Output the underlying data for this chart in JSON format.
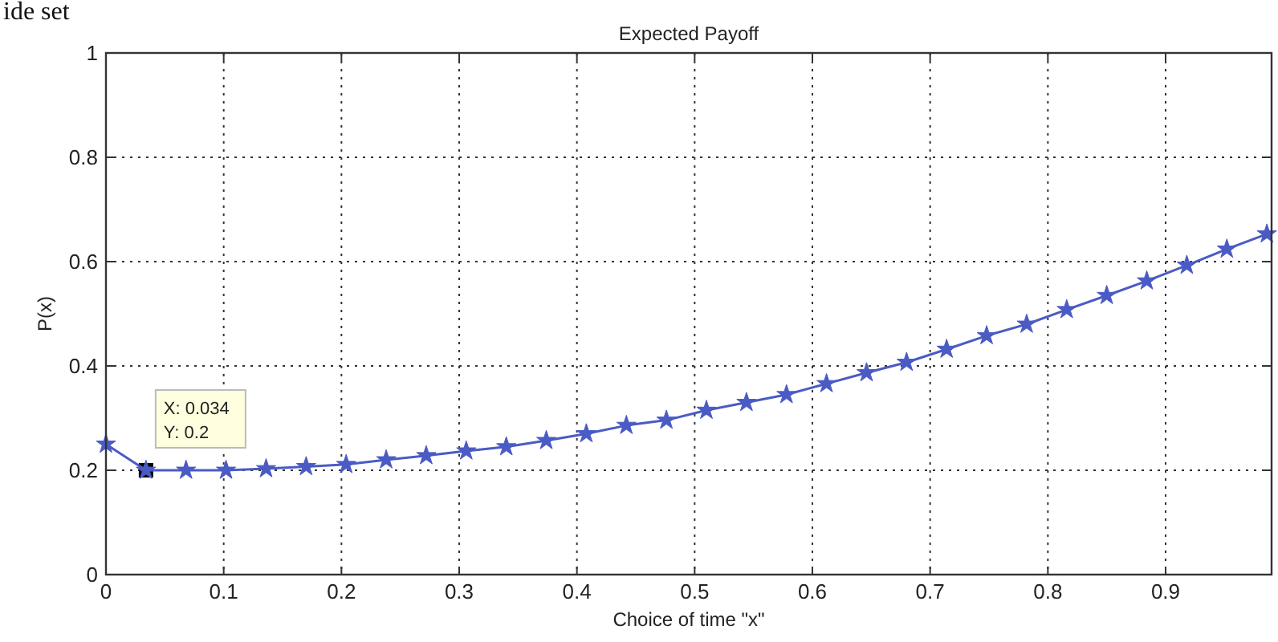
{
  "chart_data": {
    "type": "line",
    "title": "Expected Payoff",
    "xlabel": "Choice of time \"x\"",
    "ylabel": "P(x)",
    "x": [
      0,
      0.034,
      0.068,
      0.102,
      0.136,
      0.17,
      0.204,
      0.238,
      0.272,
      0.306,
      0.34,
      0.374,
      0.408,
      0.442,
      0.476,
      0.51,
      0.544,
      0.578,
      0.612,
      0.646,
      0.68,
      0.714,
      0.748,
      0.782,
      0.816,
      0.85,
      0.884,
      0.918,
      0.952,
      0.986
    ],
    "series": [
      {
        "color": "#4a5bc4",
        "values": [
          0.25,
          0.2,
          0.2,
          0.2,
          0.203,
          0.207,
          0.211,
          0.22,
          0.228,
          0.237,
          0.245,
          0.257,
          0.27,
          0.286,
          0.296,
          0.315,
          0.33,
          0.345,
          0.366,
          0.387,
          0.407,
          0.432,
          0.458,
          0.48,
          0.508,
          0.535,
          0.563,
          0.593,
          0.624,
          0.653
        ]
      }
    ],
    "xlim": [
      0,
      0.99
    ],
    "xticks": [
      0,
      0.1,
      0.2,
      0.3,
      0.4,
      0.5,
      0.6,
      0.7,
      0.8,
      0.9
    ],
    "ylim": [
      0,
      1
    ],
    "yticks": [
      0,
      0.2,
      0.4,
      0.6,
      0.8,
      1
    ],
    "grid": true,
    "marker": "star",
    "line_style": "solid",
    "annotations": [
      "ide set",
      {
        "text": "X: 0.034\nY: 0.2",
        "x": 0.034,
        "y": 0.2
      }
    ]
  }
}
